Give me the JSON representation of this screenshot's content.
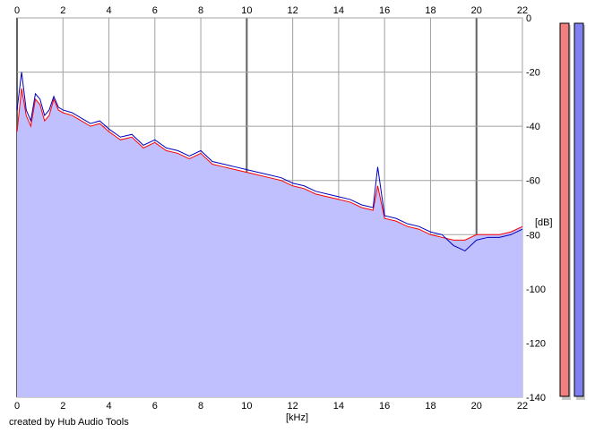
{
  "chart_data": {
    "type": "area",
    "title": "",
    "xlabel": "[kHz]",
    "ylabel": "[dB]",
    "xlim": [
      0,
      22
    ],
    "ylim": [
      -140,
      0
    ],
    "x_ticks": [
      0,
      2,
      4,
      6,
      8,
      10,
      12,
      14,
      16,
      18,
      20,
      22
    ],
    "y_ticks": [
      0,
      -20,
      -40,
      -60,
      -80,
      -100,
      -120,
      -140
    ],
    "grid": true,
    "series": [
      {
        "color": "#ff0000",
        "x": [
          0,
          0.2,
          0.4,
          0.6,
          0.8,
          1.0,
          1.2,
          1.4,
          1.6,
          1.8,
          2.0,
          2.4,
          2.8,
          3.2,
          3.6,
          4.0,
          4.5,
          5.0,
          5.5,
          6.0,
          6.5,
          7.0,
          7.5,
          8.0,
          8.5,
          9.0,
          9.5,
          10.0,
          10.5,
          11.0,
          11.5,
          12.0,
          12.5,
          13.0,
          13.5,
          14.0,
          14.5,
          15.0,
          15.5,
          15.7,
          16.0,
          16.5,
          17.0,
          17.5,
          18.0,
          18.5,
          19.0,
          19.5,
          20.0,
          20.5,
          21.0,
          21.5,
          22.0
        ],
        "values": [
          -42,
          -26,
          -36,
          -40,
          -30,
          -32,
          -38,
          -36,
          -30,
          -34,
          -35,
          -36,
          -38,
          -40,
          -39,
          -42,
          -45,
          -44,
          -48,
          -46,
          -49,
          -50,
          -52,
          -50,
          -54,
          -55,
          -56,
          -57,
          -58,
          -59,
          -60,
          -62,
          -63,
          -65,
          -66,
          -67,
          -68,
          -70,
          -71,
          -62,
          -74,
          -75,
          -77,
          -78,
          -80,
          -81,
          -82,
          -82,
          -80,
          -80,
          -80,
          -79,
          -77
        ]
      },
      {
        "color": "#0000c0",
        "x": [
          0,
          0.2,
          0.4,
          0.6,
          0.8,
          1.0,
          1.2,
          1.4,
          1.6,
          1.8,
          2.0,
          2.4,
          2.8,
          3.2,
          3.6,
          4.0,
          4.5,
          5.0,
          5.5,
          6.0,
          6.5,
          7.0,
          7.5,
          8.0,
          8.5,
          9.0,
          9.5,
          10.0,
          10.5,
          11.0,
          11.5,
          12.0,
          12.5,
          13.0,
          13.5,
          14.0,
          14.5,
          15.0,
          15.5,
          15.7,
          16.0,
          16.5,
          17.0,
          17.5,
          18.0,
          18.5,
          19.0,
          19.5,
          20.0,
          20.5,
          21.0,
          21.5,
          22.0
        ],
        "values": [
          -34,
          -20,
          -34,
          -38,
          -28,
          -30,
          -36,
          -34,
          -29,
          -33,
          -34,
          -35,
          -37,
          -39,
          -38,
          -41,
          -44,
          -43,
          -47,
          -45,
          -48,
          -49,
          -51,
          -49,
          -53,
          -54,
          -55,
          -56,
          -57,
          -58,
          -59,
          -61,
          -62,
          -64,
          -65,
          -66,
          -67,
          -69,
          -70,
          -55,
          -73,
          -74,
          -76,
          -77,
          -79,
          -80,
          -84,
          -86,
          -82,
          -81,
          -81,
          -80,
          -78
        ]
      }
    ],
    "fill_color": "#c0c0ff",
    "meters": [
      {
        "color": "#f08080",
        "value": 0
      },
      {
        "color": "#8080f0",
        "value": 0
      }
    ]
  },
  "footer": {
    "credit": "created by Hub Audio Tools"
  }
}
